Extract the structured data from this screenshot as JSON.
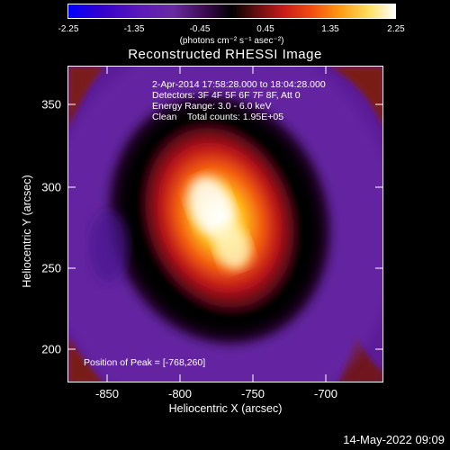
{
  "colorbar": {
    "ticks": [
      "-2.25",
      "-1.35",
      "-0.45",
      "0.45",
      "1.35",
      "2.25"
    ],
    "units": "(photons cm⁻² s⁻¹ asec⁻²)"
  },
  "title": "Reconstructed RHESSI Image",
  "info": {
    "line1": "2-Apr-2014 17:58:28.000 to 18:04:28.000",
    "line2": "Detectors: 3F 4F 5F 6F 7F 8F, Att 0",
    "line3": "Energy Range: 3.0 - 6.0 keV",
    "line4": "Clean    Total counts: 1.95E+05"
  },
  "peak": "Position of Peak = [-768,260]",
  "axes": {
    "x_ticks": [
      "-850",
      "-800",
      "-750",
      "-700"
    ],
    "y_ticks": [
      "350",
      "300",
      "250",
      "200"
    ],
    "xlabel": "Heliocentric X (arcsec)",
    "ylabel": "Heliocentric Y (arcsec)"
  },
  "timestamp": "14-May-2022 09:09"
}
